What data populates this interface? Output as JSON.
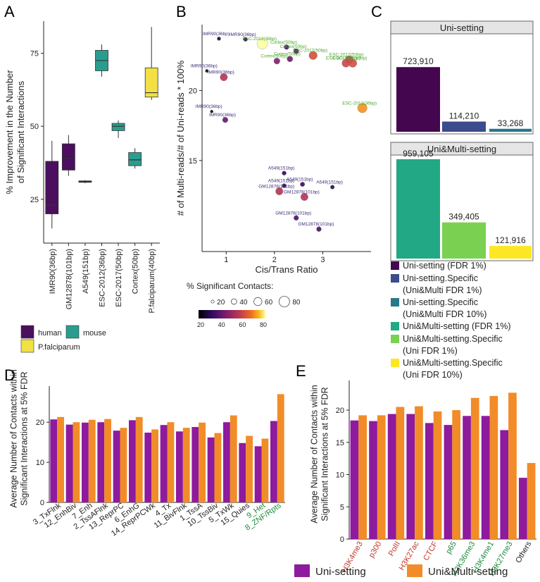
{
  "panel_letters": {
    "a": "A",
    "b": "B",
    "c": "C",
    "d": "D",
    "e": "E"
  },
  "colors": {
    "human": "#4b0f5e",
    "mouse": "#2a9d8f",
    "pfal": "#f2e044",
    "uni": "#8e1a9e",
    "multi": "#f28c28",
    "c_uni": "#44064f",
    "c_uni_spec1": "#3b4b8c",
    "c_uni_spec10": "#27788a",
    "c_multi": "#22a884",
    "c_multi_spec1": "#7ad151",
    "c_multi_spec10": "#fde725",
    "red": "#c0392b",
    "green": "#1a8a3a",
    "ptLabel1": "#3a2c7a",
    "ptLabel2": "#4aa82a"
  },
  "chart_data": [
    {
      "id": "A",
      "type": "box",
      "ylabel": "% Improvement in the Number\nof Significant Interactions",
      "ylim": [
        10,
        86
      ],
      "yticks": [
        25,
        50,
        75
      ],
      "categories": [
        "IMR90(36bp)",
        "GM12878(101bp)",
        "A549(151bp)",
        "ESC-2012(36bp)",
        "ESC-2017(50bp)",
        "Cortex(50bp)",
        "P.falciparum(40bp)"
      ],
      "species": [
        "human",
        "human",
        "human",
        "mouse",
        "mouse",
        "mouse",
        "pfal"
      ],
      "boxes": [
        {
          "min": 15,
          "q1": 20,
          "median": 23,
          "q3": 38,
          "max": 45
        },
        {
          "min": 33,
          "q1": 35,
          "median": 39,
          "q3": 44,
          "max": 47
        },
        {
          "min": 30.5,
          "q1": 30.8,
          "median": 31,
          "q3": 31.3,
          "max": 31.5
        },
        {
          "min": 67,
          "q1": 69,
          "median": 72.5,
          "q3": 76,
          "max": 78
        },
        {
          "min": 46,
          "q1": 48.5,
          "median": 50,
          "q3": 51,
          "max": 52
        },
        {
          "min": 35.5,
          "q1": 36.5,
          "median": 38.5,
          "q3": 41,
          "max": 42.5
        },
        {
          "min": 59,
          "q1": 60,
          "median": 61.5,
          "q3": 70,
          "max": 84
        }
      ],
      "legend": [
        {
          "key": "human",
          "label": "human"
        },
        {
          "key": "mouse",
          "label": "mouse"
        },
        {
          "key": "pfal",
          "label": "P.falciparum"
        }
      ]
    },
    {
      "id": "B",
      "type": "scatter",
      "xlabel": "Cis/Trans Ratio",
      "ylabel": "# of Multi-reads/# of Uni-reads * 100%",
      "xlim": [
        0.5,
        4.0
      ],
      "ylim": [
        8.5,
        24.7
      ],
      "xticks": [
        1,
        2,
        3
      ],
      "yticks": [
        15,
        20
      ],
      "points": [
        {
          "x": 0.85,
          "y": 23.7,
          "pct": 25,
          "label": "IMR90(36bp)",
          "group": 1
        },
        {
          "x": 1.4,
          "y": 23.65,
          "pct": 28,
          "label": "IMR90(36bp)",
          "group": 1
        },
        {
          "x": 1.75,
          "y": 23.35,
          "pct": 82,
          "label": "ESC-2012(36bp)",
          "group": 2
        },
        {
          "x": 0.6,
          "y": 21.4,
          "pct": 22,
          "label": "IMR90(36bp)",
          "group": 1
        },
        {
          "x": 0.95,
          "y": 20.95,
          "pct": 55,
          "label": "IMR90(36bp)",
          "group": 1
        },
        {
          "x": 2.25,
          "y": 23.1,
          "pct": 35,
          "label": "Cortex(50bp)",
          "group": 2
        },
        {
          "x": 2.45,
          "y": 22.8,
          "pct": 38,
          "label": "Cortex(50bp)",
          "group": 2
        },
        {
          "x": 2.05,
          "y": 22.1,
          "pct": 45,
          "label": "Cortex(50bp)",
          "group": 2
        },
        {
          "x": 2.32,
          "y": 22.25,
          "pct": 42,
          "label": "Cortex(50bp)",
          "group": 2
        },
        {
          "x": 2.8,
          "y": 22.5,
          "pct": 62,
          "label": "ESC-2017(50bp)",
          "group": 2
        },
        {
          "x": 3.55,
          "y": 22.2,
          "pct": 58,
          "label": "ESC-2017(50bp)",
          "group": 2
        },
        {
          "x": 3.48,
          "y": 21.95,
          "pct": 60,
          "label": "ESC-2017(50bp)",
          "group": 2
        },
        {
          "x": 3.62,
          "y": 21.95,
          "pct": 62,
          "label": "ESC-2017(50bp)",
          "group": 2
        },
        {
          "x": 3.82,
          "y": 18.75,
          "pct": 72,
          "label": "ESC-2012(36bp)",
          "group": 2
        },
        {
          "x": 0.7,
          "y": 18.5,
          "pct": 20,
          "label": "IMR90(36bp)",
          "group": 1
        },
        {
          "x": 0.98,
          "y": 17.9,
          "pct": 40,
          "label": "IMR90(36bp)",
          "group": 1
        },
        {
          "x": 2.2,
          "y": 14.1,
          "pct": 30,
          "label": "A549(151bp)",
          "group": 1
        },
        {
          "x": 2.2,
          "y": 13.2,
          "pct": 30,
          "label": "A549(151bp)",
          "group": 1
        },
        {
          "x": 2.58,
          "y": 13.3,
          "pct": 32,
          "label": "A549(151bp)",
          "group": 1
        },
        {
          "x": 3.2,
          "y": 13.1,
          "pct": 28,
          "label": "A549(151bp)",
          "group": 1
        },
        {
          "x": 2.1,
          "y": 12.8,
          "pct": 55,
          "label": "GM12878(101bp)",
          "group": 1
        },
        {
          "x": 2.62,
          "y": 12.4,
          "pct": 55,
          "label": "GM12878(101bp)",
          "group": 1
        },
        {
          "x": 2.45,
          "y": 10.9,
          "pct": 35,
          "label": "GM12878(101bp)",
          "group": 1
        },
        {
          "x": 2.92,
          "y": 10.1,
          "pct": 35,
          "label": "GM12878(101bp)",
          "group": 1
        }
      ],
      "size_legend_title": "% Significant Contacts:",
      "size_legend": [
        20,
        40,
        60,
        80
      ],
      "colorbar_ticks": [
        20,
        40,
        60,
        80
      ]
    },
    {
      "id": "C",
      "type": "bar",
      "facets": [
        {
          "title": "Uni-setting",
          "bars": [
            {
              "key": "c_uni",
              "value": 723910,
              "label": "723,910"
            },
            {
              "key": "c_uni_spec1",
              "value": 114210,
              "label": "114,210"
            },
            {
              "key": "c_uni_spec10",
              "value": 33268,
              "label": "33,268"
            }
          ]
        },
        {
          "title": "Uni&Multi-setting",
          "bars": [
            {
              "key": "c_multi",
              "value": 959105,
              "label": "959,105"
            },
            {
              "key": "c_multi_spec1",
              "value": 349405,
              "label": "349,405"
            },
            {
              "key": "c_multi_spec10",
              "value": 121916,
              "label": "121,916"
            }
          ]
        }
      ],
      "ymax": 959105,
      "legend": [
        {
          "key": "c_uni",
          "lines": [
            "Uni-setting (FDR 1%)"
          ]
        },
        {
          "key": "c_uni_spec1",
          "lines": [
            "Uni-setting.Specific",
            "(Uni&Multi FDR 1%)"
          ]
        },
        {
          "key": "c_uni_spec10",
          "lines": [
            "Uni-setting.Specific",
            "(Uni&Multi FDR 10%)"
          ]
        },
        {
          "key": "c_multi",
          "lines": [
            "Uni&Multi-setting (FDR 1%)"
          ]
        },
        {
          "key": "c_multi_spec1",
          "lines": [
            "Uni&Multi-setting.Specific",
            "(Uni FDR 1%)"
          ]
        },
        {
          "key": "c_multi_spec10",
          "lines": [
            "Uni&Multi-setting.Specific",
            "(Uni FDR 10%)"
          ]
        }
      ]
    },
    {
      "id": "D",
      "type": "bar",
      "ylabel": "Average Number of Contacts within\nSignificant Interactions at 5% FDR",
      "ylim": [
        0,
        29
      ],
      "yticks": [
        0,
        10,
        20
      ],
      "categories": [
        "3_TxFlnk",
        "12_EnhBiv",
        "7_Enh",
        "2_TssAFlnk",
        "13_ReprPC",
        "6_EnhG",
        "14_ReprPCWk",
        "4_Tx",
        "11_BivFlnk",
        "1_TssA",
        "10_TssBiv",
        "5_TxWk",
        "15_Quies",
        "9_Het",
        "8_ZNF/Rpts"
      ],
      "label_colors": [
        "k",
        "k",
        "k",
        "k",
        "k",
        "k",
        "k",
        "k",
        "k",
        "k",
        "k",
        "k",
        "k",
        "green",
        "green"
      ],
      "series": [
        {
          "name": "Uni-setting",
          "values": [
            20.7,
            19.4,
            19.9,
            20.0,
            17.9,
            20.5,
            17.4,
            19.3,
            17.7,
            18.8,
            16.2,
            20.0,
            14.8,
            14.0,
            20.3
          ]
        },
        {
          "name": "Uni&Multi-setting",
          "values": [
            21.3,
            20.0,
            20.6,
            20.8,
            18.6,
            21.3,
            18.2,
            20.0,
            18.6,
            19.9,
            17.3,
            21.7,
            16.6,
            15.9,
            27.0
          ]
        }
      ]
    },
    {
      "id": "E",
      "type": "bar",
      "ylabel": "Average Number of Contacts within\nSignificant Interactions at 5% FDR",
      "ylim": [
        0,
        24.6
      ],
      "yticks": [
        0,
        5,
        10,
        15,
        20
      ],
      "categories": [
        "H3K4me3",
        "p300",
        "PolII",
        "H3K27ac",
        "CTCF",
        "p65",
        "H3K36me3",
        "H3K4me1",
        "H3K27me3",
        "Others"
      ],
      "label_colors": [
        "red",
        "red",
        "red",
        "red",
        "red",
        "green",
        "green",
        "green",
        "green",
        "k"
      ],
      "series": [
        {
          "name": "Uni-setting",
          "values": [
            18.4,
            18.3,
            19.4,
            19.4,
            18.0,
            17.7,
            19.1,
            19.1,
            16.9,
            9.5
          ]
        },
        {
          "name": "Uni&Multi-setting",
          "values": [
            19.2,
            19.2,
            20.5,
            20.6,
            19.8,
            20.0,
            21.9,
            22.2,
            22.7,
            11.8
          ]
        }
      ]
    }
  ],
  "bottom_legend": [
    {
      "key": "uni",
      "label": "Uni-setting"
    },
    {
      "key": "multi",
      "label": "Uni&Multi-setting"
    }
  ]
}
